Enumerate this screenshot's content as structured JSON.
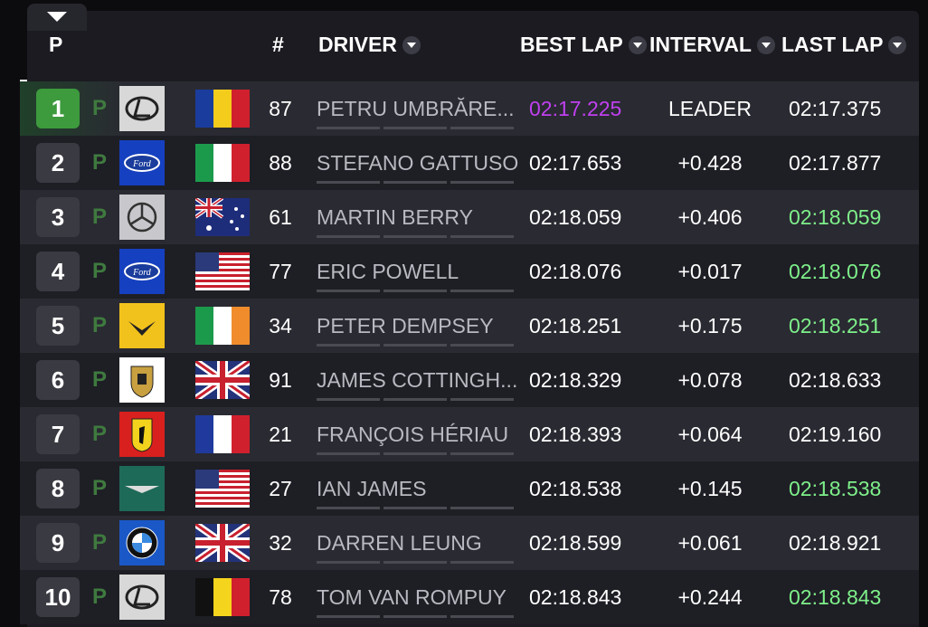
{
  "header": {
    "position": "P",
    "number": "#",
    "driver": "DRIVER",
    "best_lap": "BEST LAP",
    "interval": "INTERVAL",
    "last_lap": "LAST LAP"
  },
  "rows": [
    {
      "position": "1",
      "position_color": "#3d9a3d",
      "status": "P",
      "number": "87",
      "driver": "PETRU UMBRĂRE...",
      "best_lap": "02:17.225",
      "best_lap_color": "#c040f0",
      "interval": "LEADER",
      "last_lap": "02:17.375",
      "last_lap_color": "#ffffff"
    },
    {
      "position": "2",
      "position_color": "#3a3a42",
      "status": "P",
      "number": "88",
      "driver": "STEFANO GATTUSO",
      "best_lap": "02:17.653",
      "best_lap_color": "#ffffff",
      "interval": "+0.428",
      "last_lap": "02:17.877",
      "last_lap_color": "#ffffff"
    },
    {
      "position": "3",
      "position_color": "#3a3a42",
      "status": "P",
      "number": "61",
      "driver": "MARTIN BERRY",
      "best_lap": "02:18.059",
      "best_lap_color": "#ffffff",
      "interval": "+0.406",
      "last_lap": "02:18.059",
      "last_lap_color": "#7ef08a"
    },
    {
      "position": "4",
      "position_color": "#3a3a42",
      "status": "P",
      "number": "77",
      "driver": "ERIC POWELL",
      "best_lap": "02:18.076",
      "best_lap_color": "#ffffff",
      "interval": "+0.017",
      "last_lap": "02:18.076",
      "last_lap_color": "#7ef08a"
    },
    {
      "position": "5",
      "position_color": "#3a3a42",
      "status": "P",
      "number": "34",
      "driver": "PETER DEMPSEY",
      "best_lap": "02:18.251",
      "best_lap_color": "#ffffff",
      "interval": "+0.175",
      "last_lap": "02:18.251",
      "last_lap_color": "#7ef08a"
    },
    {
      "position": "6",
      "position_color": "#3a3a42",
      "status": "P",
      "number": "91",
      "driver": "JAMES COTTINGH...",
      "best_lap": "02:18.329",
      "best_lap_color": "#ffffff",
      "interval": "+0.078",
      "last_lap": "02:18.633",
      "last_lap_color": "#ffffff"
    },
    {
      "position": "7",
      "position_color": "#3a3a42",
      "status": "P",
      "number": "21",
      "driver": "FRANÇOIS HÉRIAU",
      "best_lap": "02:18.393",
      "best_lap_color": "#ffffff",
      "interval": "+0.064",
      "last_lap": "02:19.160",
      "last_lap_color": "#ffffff"
    },
    {
      "position": "8",
      "position_color": "#3a3a42",
      "status": "P",
      "number": "27",
      "driver": "IAN JAMES",
      "best_lap": "02:18.538",
      "best_lap_color": "#ffffff",
      "interval": "+0.145",
      "last_lap": "02:18.538",
      "last_lap_color": "#7ef08a"
    },
    {
      "position": "9",
      "position_color": "#3a3a42",
      "status": "P",
      "number": "32",
      "driver": "DARREN LEUNG",
      "best_lap": "02:18.599",
      "best_lap_color": "#ffffff",
      "interval": "+0.061",
      "last_lap": "02:18.921",
      "last_lap_color": "#ffffff"
    },
    {
      "position": "10",
      "position_color": "#3a3a42",
      "status": "P",
      "number": "78",
      "driver": "TOM VAN ROMPUY",
      "best_lap": "02:18.843",
      "best_lap_color": "#ffffff",
      "interval": "+0.244",
      "last_lap": "02:18.843",
      "last_lap_color": "#7ef08a"
    }
  ]
}
